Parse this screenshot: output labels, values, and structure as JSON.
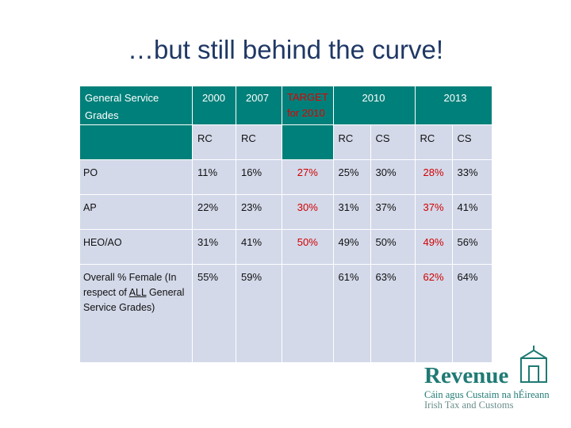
{
  "title": "…but still behind the curve!",
  "table": {
    "header_row1": [
      "General Service Grades",
      "2000",
      "2007",
      "TARGET for 2010",
      "2010",
      "2013"
    ],
    "header_row2": [
      null,
      "RC",
      "RC",
      null,
      "RC",
      "CS",
      "RC",
      "CS"
    ],
    "rows": [
      {
        "label": "PO",
        "cells": [
          "11%",
          "16%",
          "27%",
          "25%",
          "30%",
          "28%",
          "33%"
        ]
      },
      {
        "label": "AP",
        "cells": [
          "22%",
          "23%",
          "30%",
          "31%",
          "37%",
          "37%",
          "41%"
        ]
      },
      {
        "label": "HEO/AO",
        "cells": [
          "31%",
          "41%",
          "50%",
          "49%",
          "50%",
          "49%",
          "56%"
        ]
      },
      {
        "label": [
          "Overall % Female (In respect of ",
          "ALL",
          " General Service Grades)"
        ],
        "cells": [
          "55%",
          "59%",
          null,
          "61%",
          "63%",
          "62%",
          "64%"
        ]
      }
    ]
  },
  "logo": {
    "name": "Revenue",
    "irish": "Cáin agus Custaim na hÉireann",
    "english": "Irish Tax and Customs"
  }
}
